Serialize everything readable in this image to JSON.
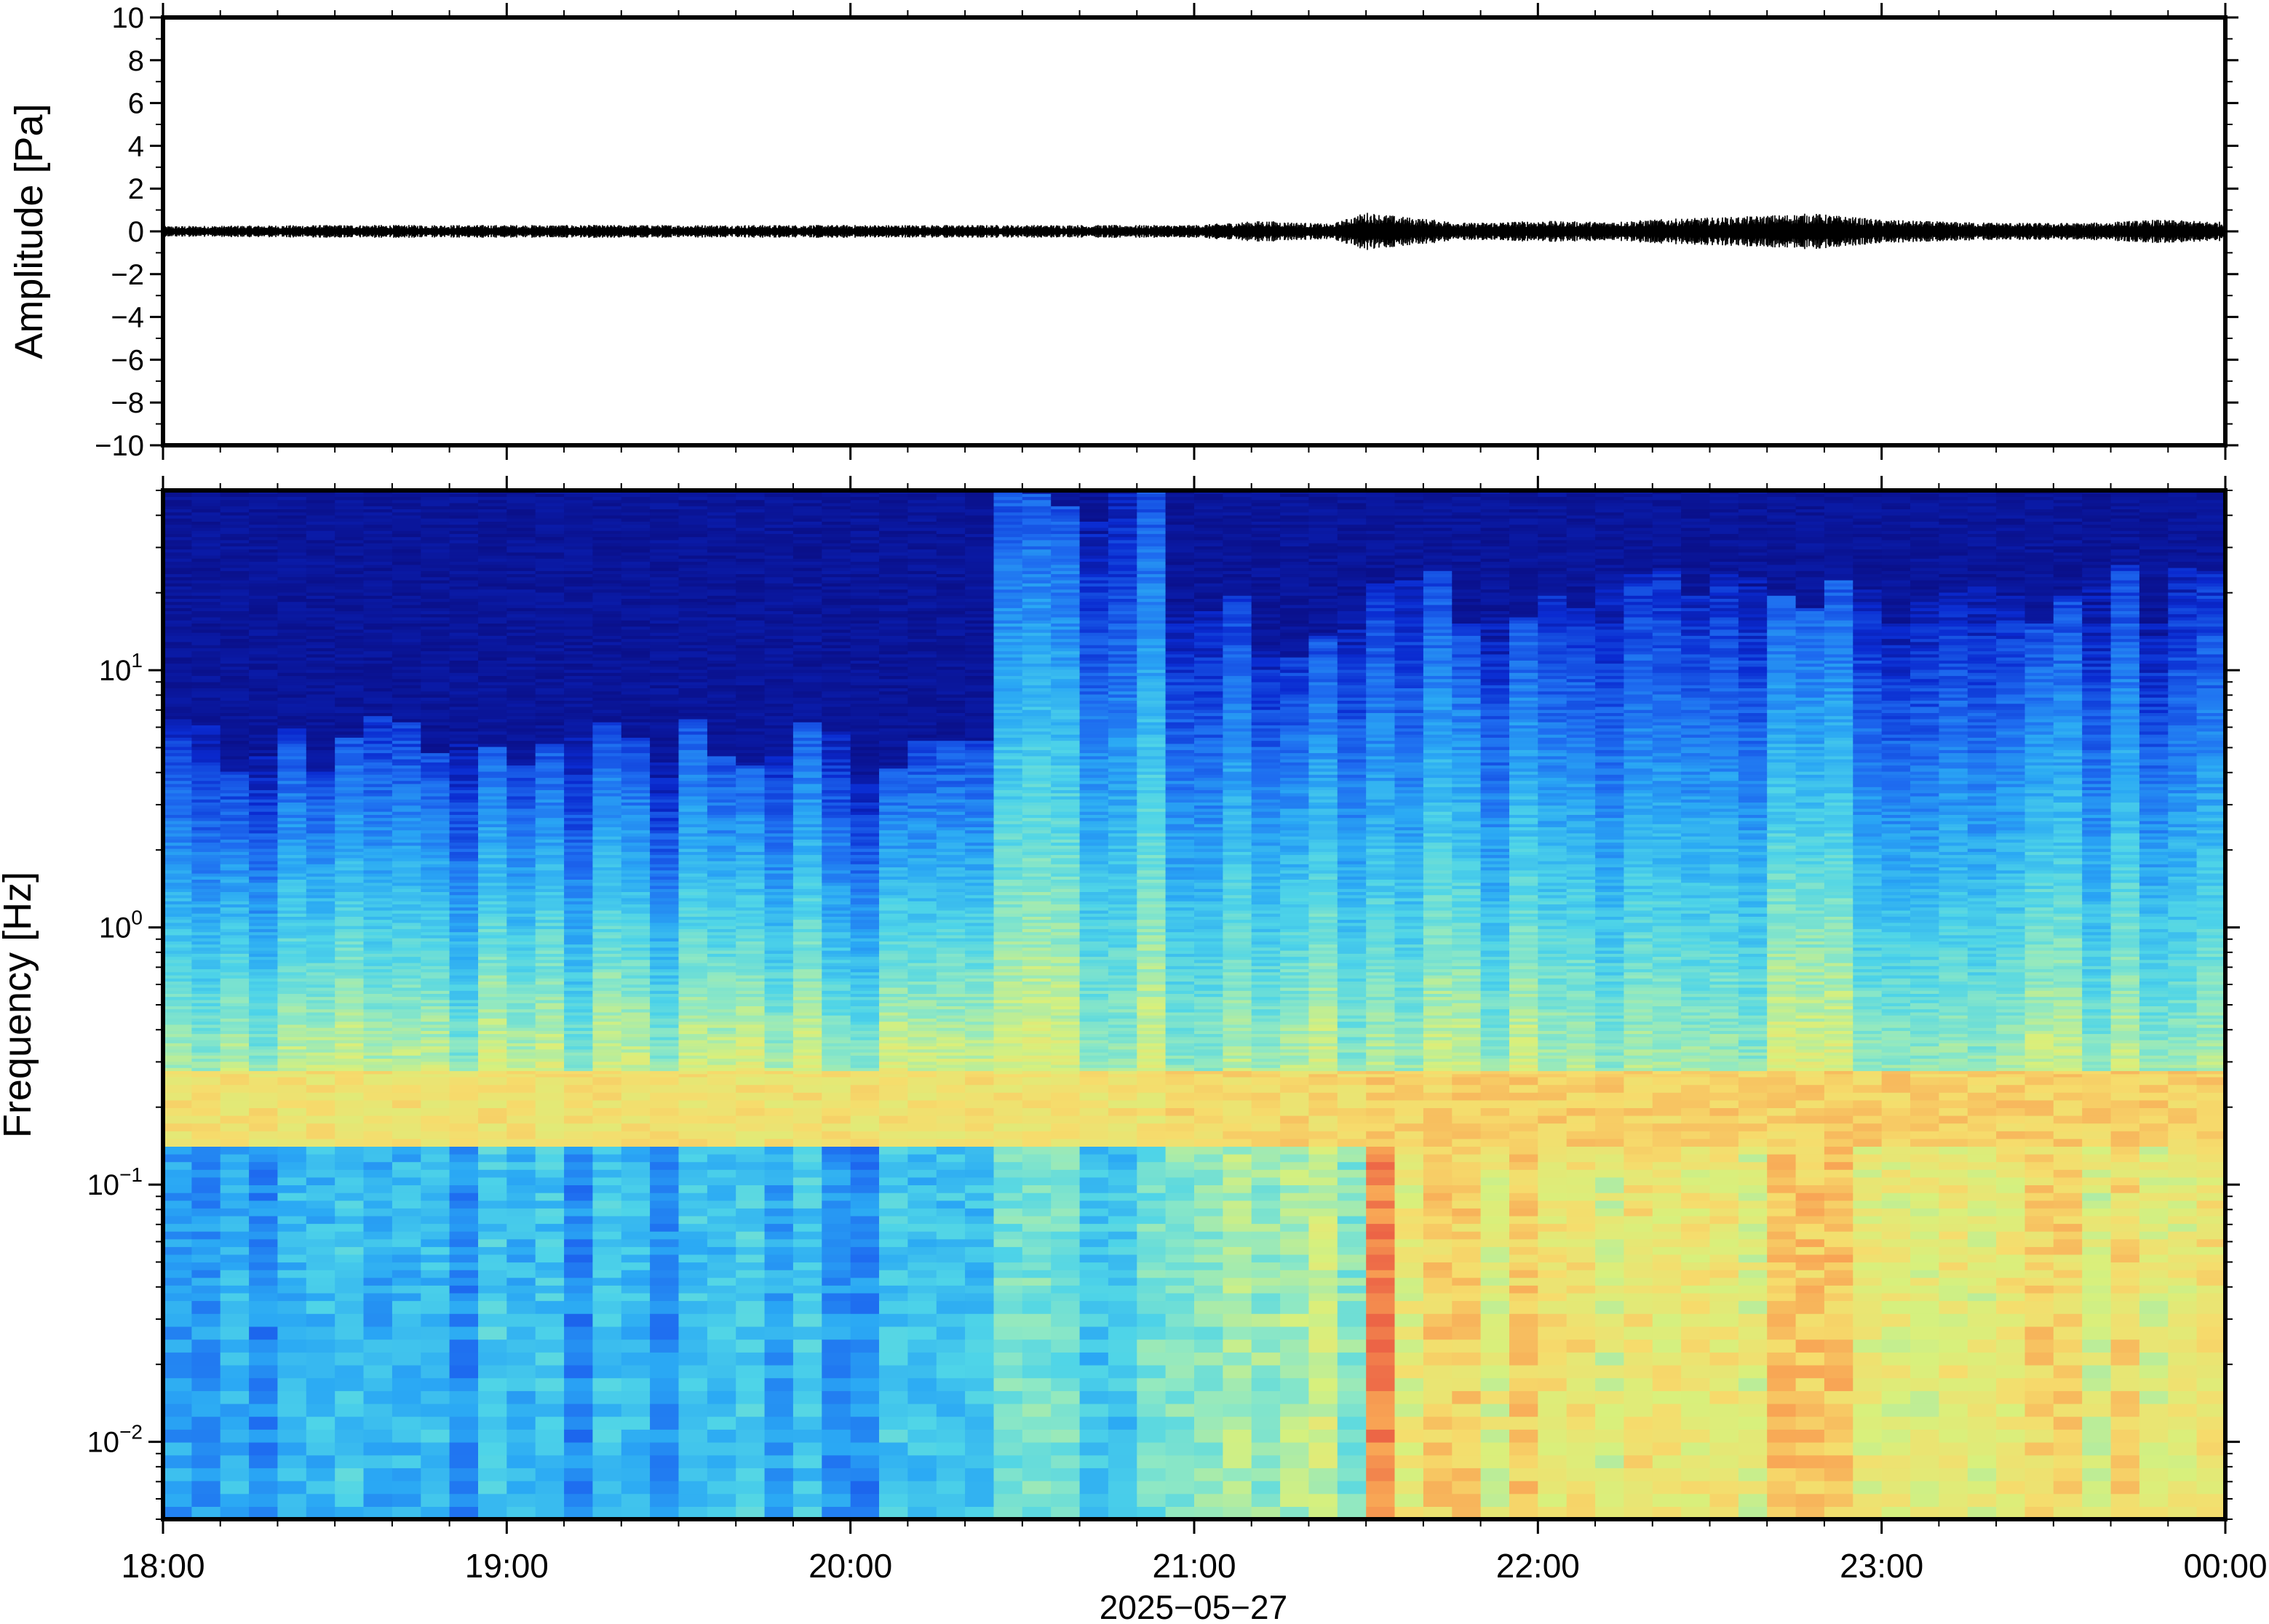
{
  "chart_data": [
    {
      "type": "line",
      "panel": "waveform",
      "ylabel": "Amplitude [Pa]",
      "ylim": [
        -10,
        10
      ],
      "yticks": [
        10,
        8,
        6,
        4,
        2,
        0,
        -2,
        -4,
        -6,
        -8,
        -10
      ],
      "ytick_labels": [
        "10",
        "8",
        "6",
        "4",
        "2",
        "0",
        "−2",
        "−4",
        "−6",
        "−8",
        "−10"
      ],
      "series": [
        {
          "time_hours": [
            18.0,
            18.5,
            19.0,
            19.5,
            20.0,
            20.5,
            20.8,
            21.0,
            21.2,
            21.4,
            21.5,
            21.6,
            21.8,
            22.0,
            22.2,
            22.4,
            22.6,
            22.8,
            23.0,
            23.2,
            23.4,
            23.6,
            23.8,
            24.0
          ],
          "envelope_pa": [
            0.25,
            0.3,
            0.3,
            0.3,
            0.3,
            0.3,
            0.3,
            0.3,
            0.5,
            0.35,
            0.9,
            0.7,
            0.4,
            0.5,
            0.45,
            0.6,
            0.7,
            0.85,
            0.55,
            0.45,
            0.4,
            0.4,
            0.55,
            0.45
          ]
        }
      ],
      "color": "#000000"
    },
    {
      "type": "heatmap",
      "panel": "spectrogram",
      "ylabel": "Frequency [Hz]",
      "yscale": "log",
      "ylim": [
        0.005,
        50
      ],
      "ytick_labels": [
        {
          "value": 10,
          "base": "10",
          "exp": "1"
        },
        {
          "value": 1,
          "base": "10",
          "exp": "0"
        },
        {
          "value": 0.1,
          "base": "10",
          "exp": "−1"
        },
        {
          "value": 0.01,
          "base": "10",
          "exp": "−2"
        }
      ],
      "xlabel": "2025−05−27",
      "xlim_hours": [
        18,
        24
      ],
      "xtick_labels": [
        "18:00",
        "19:00",
        "20:00",
        "21:00",
        "22:00",
        "23:00",
        "00:00"
      ],
      "colormap": [
        "#0a0a7a",
        "#0a2ad0",
        "#1e6cf0",
        "#2aa8f4",
        "#4ed4e8",
        "#8ee8c4",
        "#d8f07c",
        "#f6dc6c",
        "#f8a454",
        "#ec6446"
      ],
      "levels_note": "relative power 0 (dark blue) to 1 (red)",
      "segments": [
        {
          "t": [
            18.0,
            20.4
          ],
          "low_level": 0.35,
          "band_level": 0.75,
          "top_hz": 5
        },
        {
          "t": [
            20.4,
            20.9
          ],
          "low_level": 0.45,
          "band_level": 0.75,
          "top_hz": 40
        },
        {
          "t": [
            20.9,
            21.5
          ],
          "low_level": 0.6,
          "band_level": 0.78,
          "top_hz": 15
        },
        {
          "t": [
            21.5,
            21.6
          ],
          "low_level": 0.95,
          "band_level": 0.8,
          "top_hz": 25
        },
        {
          "t": [
            21.6,
            24.0
          ],
          "low_level": 0.75,
          "band_level": 0.8,
          "top_hz": 20
        }
      ],
      "microseism_band_hz": [
        0.14,
        0.28
      ]
    }
  ]
}
